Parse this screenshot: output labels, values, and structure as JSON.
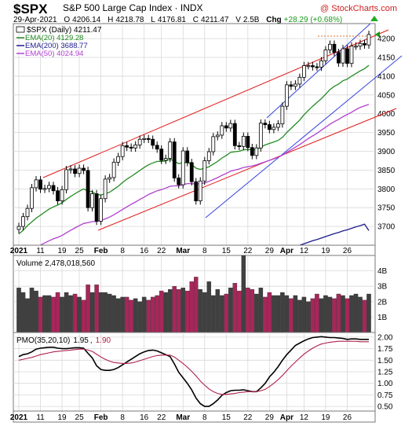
{
  "header": {
    "symbol": "$SPX",
    "name": "S&P 500 Large Cap Index",
    "exchange": "INDX",
    "watermark": "@ StockCharts.com",
    "date": "29-Apr-2021",
    "open_label": "O",
    "open": "4206.14",
    "high_label": "H",
    "high": "4218.78",
    "low_label": "L",
    "low": "4176.81",
    "close_label": "C",
    "close": "4211.47",
    "volume_label": "V",
    "volume": "2.5B",
    "change_label": "Chg",
    "change": "+28.29 (+0.68%)"
  },
  "legend": {
    "price": "$SPX (Daily) 4211.47",
    "ema20": "EMA(20) 4129.28",
    "ema200": "EMA(200) 3688.77",
    "ema50": "EMA(50) 4024.94"
  },
  "volume_panel": {
    "label": "Volume 2,478,018,560"
  },
  "pmo_panel": {
    "label": "PMO(35,20,10)",
    "value1": "1.95",
    "value2": "1.90"
  },
  "colors": {
    "ema20": "#228b22",
    "ema200": "#1c1c8c",
    "ema50": "#b040d0",
    "channel_red": "#e21a1a",
    "channel_blue": "#3344dd",
    "volume_up": "#404040",
    "volume_down": "#a8265a",
    "pmo_line": "#000000",
    "pmo_signal": "#b0204a",
    "grid": "#d8d8d8",
    "panel_bg": "#f4f4f4"
  },
  "chart_data": [
    {
      "type": "candlestick",
      "panel": "price",
      "ylim": [
        3650,
        4240
      ],
      "y_ticks": [
        3700,
        3750,
        3800,
        3850,
        3900,
        3950,
        4000,
        4050,
        4100,
        4150,
        4200
      ],
      "x_tick_labels": [
        "2021",
        "11",
        "19",
        "25",
        "Feb",
        "8",
        "16",
        "22",
        "Mar",
        "8",
        "15",
        "22",
        "29",
        "Apr",
        "12",
        "19",
        "26"
      ],
      "x_tick_index": [
        0,
        5,
        10,
        14,
        19,
        24,
        29,
        33,
        38,
        43,
        48,
        53,
        58,
        62,
        66,
        71,
        76
      ],
      "last_close_marker": "4211.47",
      "series": [
        {
          "name": "$SPX",
          "close": [
            3700,
            3726,
            3748,
            3803,
            3824,
            3799,
            3801,
            3809,
            3795,
            3768,
            3798,
            3851,
            3853,
            3841,
            3855,
            3849,
            3750,
            3787,
            3714,
            3774,
            3826,
            3830,
            3871,
            3886,
            3915,
            3911,
            3909,
            3917,
            3932,
            3934,
            3932,
            3916,
            3906,
            3876,
            3881,
            3925,
            3829,
            3811,
            3901,
            3870,
            3819,
            3768,
            3821,
            3875,
            3899,
            3939,
            3943,
            3968,
            3962,
            3974,
            3915,
            3913,
            3940,
            3910,
            3889,
            3909,
            3975,
            3971,
            3958,
            3964,
            3973,
            4020,
            4077,
            4073,
            4079,
            4097,
            4128,
            4128,
            4125,
            4124,
            4141,
            4170,
            4185,
            4163,
            4135,
            4173,
            4134,
            4180,
            4180,
            4187,
            4183,
            4211
          ]
        }
      ]
    },
    {
      "type": "line",
      "panel": "price-overlays",
      "series": [
        {
          "name": "EMA(20)",
          "values": [
            3680,
            3690,
            3702,
            3712,
            3722,
            3730,
            3738,
            3746,
            3752,
            3757,
            3763,
            3772,
            3780,
            3787,
            3794,
            3800,
            3794,
            3793,
            3785,
            3784,
            3787,
            3791,
            3799,
            3807,
            3817,
            3826,
            3833,
            3841,
            3849,
            3857,
            3864,
            3869,
            3873,
            3873,
            3874,
            3879,
            3874,
            3867,
            3870,
            3870,
            3865,
            3855,
            3852,
            3855,
            3859,
            3866,
            3873,
            3882,
            3889,
            3897,
            3899,
            3900,
            3904,
            3905,
            3904,
            3904,
            3911,
            3917,
            3921,
            3925,
            3929,
            3937,
            3950,
            3961,
            3972,
            3983,
            3997,
            4009,
            4020,
            4030,
            4040,
            4052,
            4064,
            4073,
            4079,
            4088,
            4092,
            4100,
            4107,
            4114,
            4120,
            4129
          ]
        },
        {
          "name": "EMA(50)",
          "values": [
            3620,
            3625,
            3630,
            3637,
            3644,
            3650,
            3656,
            3662,
            3667,
            3671,
            3676,
            3683,
            3690,
            3696,
            3702,
            3708,
            3710,
            3713,
            3713,
            3716,
            3720,
            3725,
            3731,
            3738,
            3745,
            3752,
            3759,
            3765,
            3772,
            3778,
            3785,
            3790,
            3795,
            3798,
            3802,
            3807,
            3808,
            3808,
            3811,
            3814,
            3814,
            3813,
            3814,
            3816,
            3820,
            3825,
            3830,
            3836,
            3841,
            3847,
            3850,
            3853,
            3857,
            3859,
            3861,
            3864,
            3868,
            3872,
            3876,
            3880,
            3884,
            3890,
            3897,
            3904,
            3911,
            3918,
            3926,
            3934,
            3941,
            3948,
            3956,
            3964,
            3972,
            3979,
            3985,
            3992,
            3998,
            4004,
            4011,
            4017,
            4021,
            4025
          ]
        },
        {
          "name": "EMA(200)",
          "values": [
            3423,
            3426,
            3429,
            3433,
            3437,
            3441,
            3444,
            3448,
            3451,
            3454,
            3458,
            3462,
            3466,
            3470,
            3474,
            3478,
            3481,
            3484,
            3487,
            3490,
            3494,
            3497,
            3501,
            3505,
            3509,
            3513,
            3517,
            3521,
            3525,
            3529,
            3533,
            3537,
            3540,
            3544,
            3547,
            3551,
            3554,
            3557,
            3560,
            3563,
            3566,
            3568,
            3571,
            3574,
            3577,
            3581,
            3584,
            3588,
            3591,
            3595,
            3598,
            3601,
            3604,
            3607,
            3610,
            3613,
            3617,
            3620,
            3623,
            3627,
            3630,
            3634,
            3638,
            3642,
            3646,
            3650,
            3654,
            3658,
            3662,
            3665,
            3669,
            3673,
            3677,
            3681,
            3684,
            3688,
            3691,
            3695,
            3699,
            3702,
            3706,
            3689
          ]
        }
      ]
    },
    {
      "type": "bar",
      "panel": "volume",
      "ylim": [
        0,
        5000000000
      ],
      "y_ticks": [
        1000000000,
        2000000000,
        3000000000,
        4000000000
      ],
      "y_tick_labels": [
        "1B",
        "2B",
        "3B",
        "4B"
      ],
      "values": [
        2.9,
        2.6,
        2.2,
        2.9,
        2.7,
        2.3,
        2.4,
        2.4,
        2.3,
        2.6,
        2.3,
        2.6,
        2.4,
        2.5,
        2.3,
        2.1,
        3.1,
        2.6,
        3.1,
        2.6,
        2.6,
        2.5,
        2.4,
        2.2,
        2.3,
        2.3,
        2.1,
        2.2,
        2.0,
        2.3,
        2.1,
        2.3,
        2.4,
        2.7,
        2.6,
        2.8,
        3.0,
        2.8,
        2.9,
        2.7,
        3.3,
        3.6,
        2.8,
        2.6,
        3.3,
        2.4,
        2.8,
        2.4,
        2.5,
        2.9,
        3.2,
        2.7,
        5.0,
        2.9,
        2.8,
        2.5,
        2.9,
        2.3,
        2.6,
        2.4,
        2.4,
        2.6,
        2.4,
        2.2,
        2.4,
        2.1,
        2.3,
        2.0,
        2.2,
        2.5,
        2.2,
        2.4,
        2.3,
        2.2,
        2.5,
        2.4,
        2.2,
        2.4,
        2.5,
        2.3,
        2.1,
        2.5
      ],
      "value_unit": "billions"
    },
    {
      "type": "line",
      "panel": "pmo",
      "ylim": [
        0.4,
        2.1
      ],
      "y_ticks": [
        0.5,
        0.75,
        1.0,
        1.25,
        1.5,
        1.75,
        2.0
      ],
      "y_tick_labels": [
        "0.50",
        "0.75",
        "1.00",
        "1.25",
        "1.50",
        "1.75",
        "2.00"
      ],
      "series": [
        {
          "name": "PMO",
          "values": [
            1.58,
            1.62,
            1.64,
            1.68,
            1.74,
            1.76,
            1.77,
            1.78,
            1.78,
            1.76,
            1.75,
            1.75,
            1.76,
            1.77,
            1.77,
            1.76,
            1.65,
            1.55,
            1.38,
            1.3,
            1.28,
            1.28,
            1.3,
            1.34,
            1.4,
            1.46,
            1.52,
            1.58,
            1.64,
            1.68,
            1.71,
            1.72,
            1.7,
            1.66,
            1.62,
            1.58,
            1.42,
            1.24,
            1.12,
            1.0,
            0.86,
            0.68,
            0.56,
            0.5,
            0.5,
            0.56,
            0.64,
            0.74,
            0.8,
            0.84,
            0.85,
            0.85,
            0.86,
            0.84,
            0.82,
            0.82,
            0.9,
            1.0,
            1.14,
            1.24,
            1.36,
            1.5,
            1.62,
            1.72,
            1.82,
            1.87,
            1.92,
            1.96,
            1.99,
            2.0,
            2.01,
            2.0,
            1.99,
            1.99,
            1.98,
            1.97,
            1.95,
            1.96,
            1.96,
            1.95,
            1.95,
            1.95
          ]
        },
        {
          "name": "Signal",
          "values": [
            1.5,
            1.52,
            1.54,
            1.56,
            1.59,
            1.62,
            1.64,
            1.66,
            1.68,
            1.69,
            1.7,
            1.71,
            1.72,
            1.73,
            1.74,
            1.74,
            1.72,
            1.69,
            1.63,
            1.57,
            1.52,
            1.48,
            1.45,
            1.44,
            1.43,
            1.43,
            1.44,
            1.46,
            1.49,
            1.52,
            1.55,
            1.58,
            1.6,
            1.61,
            1.61,
            1.61,
            1.57,
            1.5,
            1.43,
            1.35,
            1.26,
            1.16,
            1.05,
            0.96,
            0.88,
            0.82,
            0.78,
            0.76,
            0.76,
            0.77,
            0.78,
            0.8,
            0.81,
            0.82,
            0.82,
            0.82,
            0.84,
            0.87,
            0.93,
            1.0,
            1.08,
            1.17,
            1.27,
            1.37,
            1.46,
            1.55,
            1.63,
            1.7,
            1.76,
            1.81,
            1.85,
            1.87,
            1.89,
            1.9,
            1.91,
            1.91,
            1.91,
            1.91,
            1.91,
            1.9,
            1.9,
            1.9
          ]
        }
      ]
    }
  ]
}
